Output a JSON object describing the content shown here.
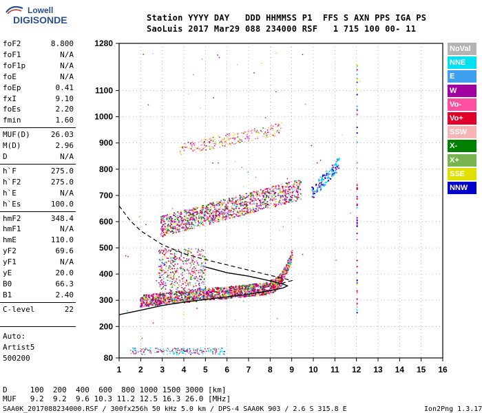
{
  "logo": {
    "brand": "Lowell",
    "product": "DIGISONDE"
  },
  "header": {
    "labels": "Station YYYY DAY   DDD HHMMSS P1  FFS S AXN PPS IGA PS",
    "values": "SaoLuis 2017 Mar29 088 234000 RSF   1 715 100 00- 11"
  },
  "parameters": [
    {
      "name": "foF2",
      "value": "8.800"
    },
    {
      "name": "foF1",
      "value": "N/A"
    },
    {
      "name": "foF1p",
      "value": "N/A"
    },
    {
      "name": "foE",
      "value": "N/A"
    },
    {
      "name": "foEp",
      "value": "0.41"
    },
    {
      "name": "fxI",
      "value": "9.10"
    },
    {
      "name": "foEs",
      "value": "2.20"
    },
    {
      "name": "fmin",
      "value": "1.60"
    },
    {
      "name": "MUF(D)",
      "value": "26.03"
    },
    {
      "name": "M(D)",
      "value": "2.96"
    },
    {
      "name": "D",
      "value": "N/A"
    },
    {
      "name": "h`F",
      "value": "275.0"
    },
    {
      "name": "h`F2",
      "value": "275.0"
    },
    {
      "name": "h`E",
      "value": "N/A"
    },
    {
      "name": "h`Es",
      "value": "100.0"
    },
    {
      "name": "hmF2",
      "value": "348.4"
    },
    {
      "name": "hmF1",
      "value": "N/A"
    },
    {
      "name": "hmE",
      "value": "110.0"
    },
    {
      "name": "yF2",
      "value": "69.6"
    },
    {
      "name": "yF1",
      "value": "N/A"
    },
    {
      "name": "yE",
      "value": "20.0"
    },
    {
      "name": "B0",
      "value": "66.3"
    },
    {
      "name": "B1",
      "value": "2.40"
    },
    {
      "name": "C-level",
      "value": "22"
    }
  ],
  "panel": {
    "auto": "Auto:",
    "artist": "Artist5",
    "artist_id": "500200"
  },
  "legend": [
    {
      "label": "NoVal",
      "color": "#b4b4b4"
    },
    {
      "label": "NNE",
      "color": "#00e0f0"
    },
    {
      "label": "E",
      "color": "#3fa0f0"
    },
    {
      "label": "W",
      "color": "#a000a0"
    },
    {
      "label": "Vo-",
      "color": "#ff50a0"
    },
    {
      "label": "Vo+",
      "color": "#e0002a"
    },
    {
      "label": "SSW",
      "color": "#f8b4b4"
    },
    {
      "label": "X-",
      "color": "#008000"
    },
    {
      "label": "X+",
      "color": "#78b450"
    },
    {
      "label": "SSE",
      "color": "#e0e000"
    },
    {
      "label": "NNW",
      "color": "#0000c8"
    }
  ],
  "footer": {
    "distance_row": "D     100  200  400  600  800 1000 1500 3000 [km]",
    "muf_row": "MUF   9.2  9.2  9.6 10.3 11.2 12.5 16.3 26.0 [MHz]",
    "file_info": "SAA0K_2017088234000.RSF / 300fx256h 50 kHz 5.0 km / DPS-4 SAA0K 903 / 2.6 S 315.8 E",
    "version": "Ion2Png 1.3.17"
  },
  "chart_data": {
    "type": "scatter",
    "title": "",
    "xlabel": "",
    "ylabel": "",
    "xlim": [
      1,
      16
    ],
    "ylim": [
      80,
      1280
    ],
    "x_ticks": [
      "1",
      "2",
      "3",
      "4",
      "5",
      "6",
      "7",
      "8",
      "9",
      "10",
      "11",
      "12",
      "13",
      "14",
      "15",
      "16"
    ],
    "y_ticks": [
      {
        "value": 80,
        "label": "80"
      },
      {
        "value": 200,
        "label": "200"
      },
      {
        "value": 300,
        "label": "300"
      },
      {
        "value": 400,
        "label": "400"
      },
      {
        "value": 500,
        "label": "500"
      },
      {
        "value": 600,
        "label": "600"
      },
      {
        "value": 700,
        "label": "700"
      },
      {
        "value": 800,
        "label": "800"
      },
      {
        "value": 900,
        "label": "900"
      },
      {
        "value": 1000,
        "label": "1000"
      },
      {
        "value": 1100,
        "label": "1100"
      },
      {
        "value": 1280,
        "label": "1280"
      }
    ],
    "grid": "dotted",
    "echo_bands": [
      {
        "name": "F-trace",
        "x_start": 1.95,
        "x_end": 8.9,
        "h_start": 305,
        "h_end": 380
      },
      {
        "name": "F-multihop",
        "x_start": 2.9,
        "x_end": 9.4,
        "h_start": 590,
        "h_end": 740
      },
      {
        "name": "F-3hop",
        "x_start": 3.8,
        "x_end": 8.5,
        "h_start": 880,
        "h_end": 960
      },
      {
        "name": "Es",
        "x_start": 1.5,
        "x_end": 6.0,
        "h_start": 100,
        "h_end": 100
      }
    ],
    "profile_solid": [
      [
        1,
        245
      ],
      [
        2,
        262
      ],
      [
        3,
        280
      ],
      [
        4,
        293
      ],
      [
        5,
        303
      ],
      [
        6,
        313
      ],
      [
        7,
        323
      ],
      [
        8,
        337
      ],
      [
        8.6,
        347
      ],
      [
        8.8,
        355
      ],
      [
        8.6,
        362
      ],
      [
        8,
        374
      ],
      [
        7.5,
        383
      ],
      [
        7,
        392
      ],
      [
        6,
        405
      ],
      [
        5,
        427
      ]
    ],
    "profile_dashed": [
      [
        1,
        660
      ],
      [
        1.5,
        605
      ],
      [
        2,
        565
      ],
      [
        3,
        512
      ],
      [
        4,
        478
      ],
      [
        5,
        455
      ],
      [
        6,
        435
      ],
      [
        7,
        415
      ],
      [
        8,
        395
      ],
      [
        8.6,
        384
      ],
      [
        9,
        375
      ],
      [
        8.6,
        366
      ]
    ]
  }
}
